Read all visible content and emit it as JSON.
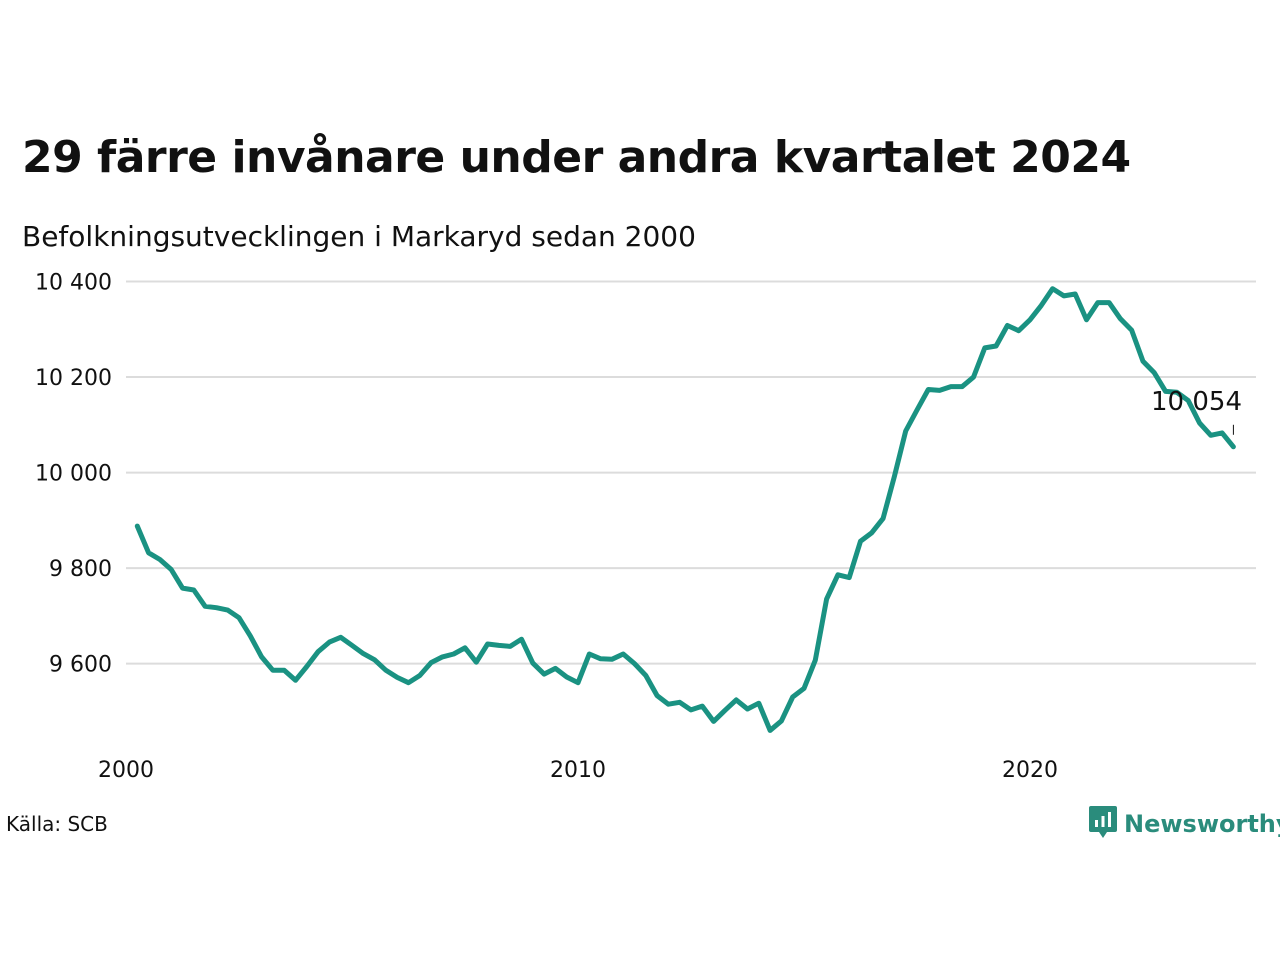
{
  "title": "29 färre invånare under andra kvartalet 2024",
  "subtitle": "Befolkningsutvecklingen i Markaryd sedan 2000",
  "source": "Källa: SCB",
  "brand": {
    "name": "Newsworthy",
    "icon": "newsworthy-logo-icon",
    "color": "#2a8c7c"
  },
  "chart_data": {
    "type": "line",
    "title": "29 färre invånare under andra kvartalet 2024",
    "subtitle": "Befolkningsutvecklingen i Markaryd sedan 2000",
    "xlabel": "",
    "ylabel": "",
    "x_ticks": [
      {
        "value": 2000,
        "label": "2000"
      },
      {
        "value": 2010,
        "label": "2010"
      },
      {
        "value": 2020,
        "label": "2020"
      }
    ],
    "y_ticks": [
      {
        "value": 9600,
        "label": "9 600"
      },
      {
        "value": 9800,
        "label": "9 800"
      },
      {
        "value": 10000,
        "label": "10 000"
      },
      {
        "value": 10200,
        "label": "10 200"
      },
      {
        "value": 10400,
        "label": "10 400"
      }
    ],
    "xlim": [
      2000,
      2025
    ],
    "ylim": [
      9440,
      10420
    ],
    "grid": "horizontal",
    "line_color": "#1a9282",
    "last_value_label": "10 054",
    "series": [
      {
        "x": [
          2000.25,
          2000.5,
          2000.75,
          2001.0,
          2001.25,
          2001.5,
          2001.75,
          2002.0,
          2002.25,
          2002.5,
          2002.75,
          2003.0,
          2003.25,
          2003.5,
          2003.75,
          2004.0,
          2004.25,
          2004.5,
          2004.75,
          2005.0,
          2005.25,
          2005.5,
          2005.75,
          2006.0,
          2006.25,
          2006.5,
          2006.75,
          2007.0,
          2007.25,
          2007.5,
          2007.75,
          2008.0,
          2008.25,
          2008.5,
          2008.75,
          2009.0,
          2009.25,
          2009.5,
          2009.75,
          2010.0,
          2010.25,
          2010.5,
          2010.75,
          2011.0,
          2011.25,
          2011.5,
          2011.75,
          2012.0,
          2012.25,
          2012.5,
          2012.75,
          2013.0,
          2013.25,
          2013.5,
          2013.75,
          2014.0,
          2014.25,
          2014.5,
          2014.75,
          2015.0,
          2015.25,
          2015.5,
          2015.75,
          2016.0,
          2016.25,
          2016.5,
          2016.75,
          2017.0,
          2017.25,
          2017.5,
          2017.75,
          2018.0,
          2018.25,
          2018.5,
          2018.75,
          2019.0,
          2019.25,
          2019.5,
          2019.75,
          2020.0,
          2020.25,
          2020.5,
          2020.75,
          2021.0,
          2021.25,
          2021.5,
          2021.75,
          2022.0,
          2022.25,
          2022.5,
          2022.75,
          2023.0,
          2023.25,
          2023.5,
          2023.75,
          2024.0,
          2024.25,
          2024.5
        ],
        "y": [
          9888,
          9832,
          9818,
          9797,
          9758,
          9754,
          9720,
          9717,
          9712,
          9696,
          9658,
          9614,
          9586,
          9586,
          9565,
          9594,
          9625,
          9645,
          9655,
          9638,
          9621,
          9608,
          9586,
          9571,
          9560,
          9575,
          9602,
          9614,
          9620,
          9633,
          9603,
          9641,
          9638,
          9636,
          9651,
          9601,
          9578,
          9590,
          9572,
          9560,
          9620,
          9610,
          9609,
          9620,
          9600,
          9575,
          9533,
          9515,
          9519,
          9503,
          9511,
          9479,
          9502,
          9524,
          9505,
          9517,
          9460,
          9480,
          9530,
          9548,
          9607,
          9735,
          9786,
          9780,
          9856,
          9874,
          9904,
          9992,
          10087,
          10131,
          10174,
          10172,
          10180,
          10180,
          10200,
          10261,
          10265,
          10308,
          10297,
          10320,
          10350,
          10385,
          10370,
          10374,
          10320,
          10356,
          10356,
          10322,
          10298,
          10233,
          10209,
          10170,
          10168,
          10151,
          10104,
          10078,
          10083,
          10054
        ]
      }
    ]
  }
}
